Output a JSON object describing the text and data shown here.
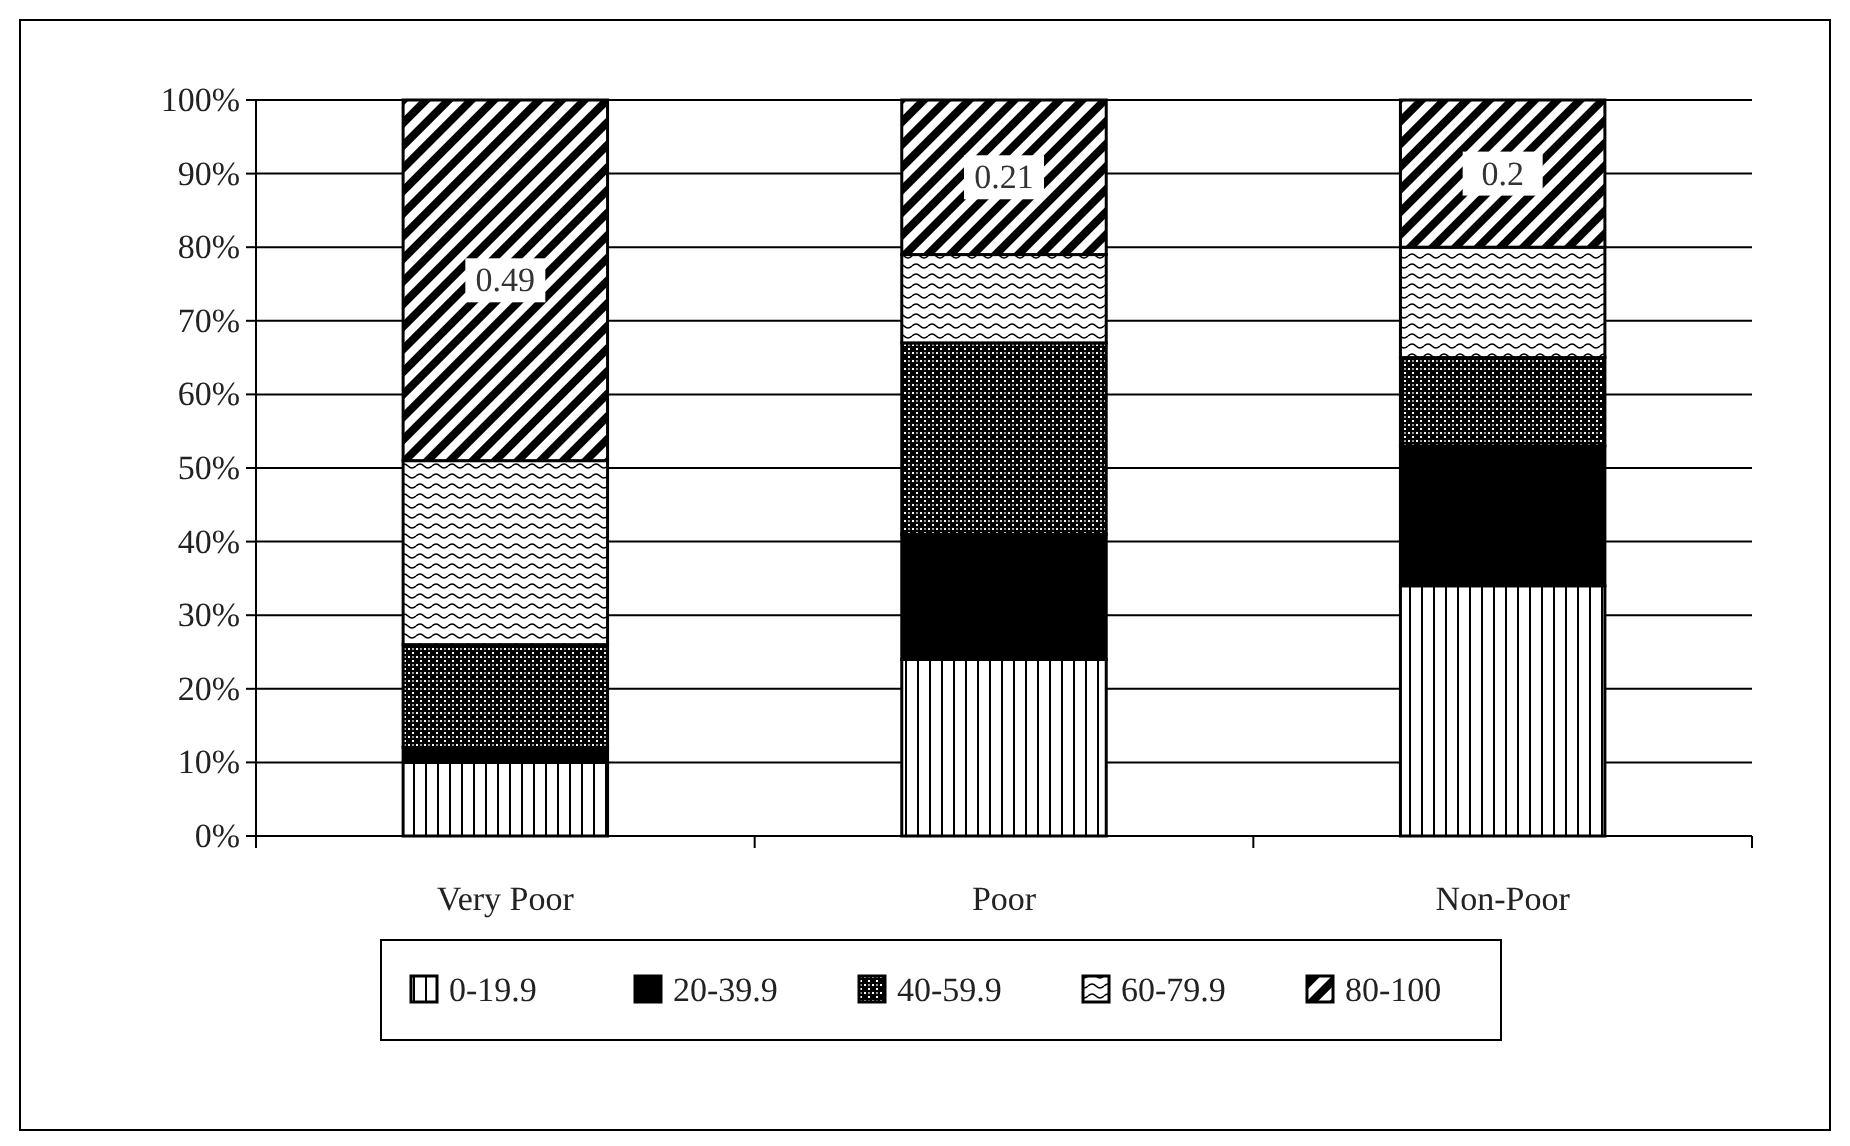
{
  "chart_data": {
    "type": "bar",
    "stacked": true,
    "categories": [
      "Very Poor",
      "Poor",
      "Non-Poor"
    ],
    "series": [
      {
        "name": "0-19.9",
        "color": "#000000",
        "values": [
          0.1,
          0.24,
          0.34
        ]
      },
      {
        "name": "20-39.9",
        "color": "#000000",
        "values": [
          0.02,
          0.17,
          0.19
        ]
      },
      {
        "name": "40-59.9",
        "color": "#000000",
        "values": [
          0.14,
          0.26,
          0.12
        ]
      },
      {
        "name": "60-79.9",
        "color": "#000000",
        "values": [
          0.25,
          0.12,
          0.15
        ]
      },
      {
        "name": "80-100",
        "color": "#000000",
        "values": [
          0.49,
          0.21,
          0.2
        ],
        "value_labels": [
          "0.49",
          "0.21",
          "0.2"
        ]
      }
    ],
    "ylim": [
      0,
      1
    ],
    "yticks": [
      {
        "value": 0,
        "label": "0%"
      },
      {
        "value": 0.1,
        "label": "10%"
      },
      {
        "value": 0.2,
        "label": "20%"
      },
      {
        "value": 0.3,
        "label": "30%"
      },
      {
        "value": 0.4,
        "label": "40%"
      },
      {
        "value": 0.5,
        "label": "50%"
      },
      {
        "value": 0.6,
        "label": "60%"
      },
      {
        "value": 0.7,
        "label": "70%"
      },
      {
        "value": 0.8,
        "label": "80%"
      },
      {
        "value": 0.9,
        "label": "90%"
      },
      {
        "value": 1,
        "label": "100%"
      }
    ],
    "grid": "y",
    "legend": "bottom"
  }
}
